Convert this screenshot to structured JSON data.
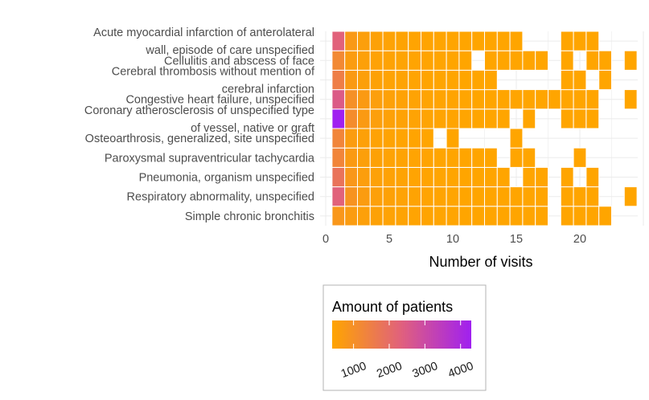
{
  "chart_data": {
    "type": "heatmap",
    "title": "",
    "xlabel": "Number of visits",
    "ylabel": "",
    "xlim": [
      0,
      25
    ],
    "x_ticks": [
      0,
      5,
      10,
      15,
      20
    ],
    "grid": true,
    "rows": [
      {
        "label": [
          "Simple chronic bronchitis"
        ],
        "cells": [
          [
            1,
            800
          ],
          [
            2,
            650
          ],
          [
            3,
            550
          ],
          [
            4,
            500
          ],
          [
            5,
            470
          ],
          [
            6,
            450
          ],
          [
            7,
            430
          ],
          [
            8,
            420
          ],
          [
            9,
            410
          ],
          [
            10,
            410
          ],
          [
            11,
            400
          ],
          [
            12,
            400
          ],
          [
            13,
            400
          ],
          [
            14,
            400
          ],
          [
            15,
            400
          ],
          [
            16,
            400
          ],
          [
            17,
            400
          ],
          [
            19,
            400
          ],
          [
            20,
            400
          ],
          [
            21,
            400
          ],
          [
            22,
            400
          ]
        ]
      },
      {
        "label": [
          "Respiratory abnormality, unspecified"
        ],
        "cells": [
          [
            1,
            2300
          ],
          [
            2,
            900
          ],
          [
            3,
            650
          ],
          [
            4,
            550
          ],
          [
            5,
            500
          ],
          [
            6,
            470
          ],
          [
            7,
            450
          ],
          [
            8,
            430
          ],
          [
            9,
            420
          ],
          [
            10,
            410
          ],
          [
            11,
            400
          ],
          [
            12,
            400
          ],
          [
            13,
            400
          ],
          [
            14,
            400
          ],
          [
            15,
            400
          ],
          [
            16,
            400
          ],
          [
            17,
            400
          ],
          [
            19,
            400
          ],
          [
            20,
            400
          ],
          [
            21,
            400
          ],
          [
            24,
            400
          ]
        ]
      },
      {
        "label": [
          "Pneumonia, organism unspecified"
        ],
        "cells": [
          [
            1,
            1800
          ],
          [
            2,
            800
          ],
          [
            3,
            600
          ],
          [
            4,
            520
          ],
          [
            5,
            480
          ],
          [
            6,
            450
          ],
          [
            7,
            430
          ],
          [
            8,
            420
          ],
          [
            9,
            410
          ],
          [
            10,
            400
          ],
          [
            11,
            400
          ],
          [
            12,
            400
          ],
          [
            13,
            400
          ],
          [
            14,
            400
          ],
          [
            16,
            400
          ],
          [
            17,
            400
          ],
          [
            19,
            400
          ],
          [
            21,
            400
          ]
        ]
      },
      {
        "label": [
          "Paroxysmal supraventricular tachycardia"
        ],
        "cells": [
          [
            1,
            1300
          ],
          [
            2,
            700
          ],
          [
            3,
            560
          ],
          [
            4,
            500
          ],
          [
            5,
            470
          ],
          [
            6,
            450
          ],
          [
            7,
            430
          ],
          [
            8,
            420
          ],
          [
            9,
            410
          ],
          [
            10,
            400
          ],
          [
            11,
            400
          ],
          [
            12,
            400
          ],
          [
            13,
            400
          ],
          [
            15,
            400
          ],
          [
            16,
            400
          ],
          [
            20,
            400
          ]
        ]
      },
      {
        "label": [
          "Osteoarthrosis, generalized, site unspecified"
        ],
        "cells": [
          [
            1,
            1300
          ],
          [
            2,
            650
          ],
          [
            3,
            530
          ],
          [
            4,
            480
          ],
          [
            5,
            450
          ],
          [
            6,
            430
          ],
          [
            7,
            420
          ],
          [
            8,
            400
          ],
          [
            10,
            400
          ],
          [
            15,
            400
          ]
        ]
      },
      {
        "label": [
          "Coronary atherosclerosis of unspecified type",
          "of vessel, native or graft"
        ],
        "cells": [
          [
            1,
            4300
          ],
          [
            2,
            1100
          ],
          [
            3,
            700
          ],
          [
            4,
            580
          ],
          [
            5,
            520
          ],
          [
            6,
            480
          ],
          [
            7,
            460
          ],
          [
            8,
            440
          ],
          [
            9,
            430
          ],
          [
            10,
            420
          ],
          [
            11,
            410
          ],
          [
            12,
            400
          ],
          [
            13,
            400
          ],
          [
            14,
            400
          ],
          [
            16,
            400
          ],
          [
            19,
            400
          ],
          [
            20,
            400
          ],
          [
            21,
            400
          ]
        ]
      },
      {
        "label": [
          "Congestive heart failure, unspecified"
        ],
        "cells": [
          [
            1,
            2500
          ],
          [
            2,
            1000
          ],
          [
            3,
            700
          ],
          [
            4,
            580
          ],
          [
            5,
            520
          ],
          [
            6,
            480
          ],
          [
            7,
            460
          ],
          [
            8,
            440
          ],
          [
            9,
            430
          ],
          [
            10,
            420
          ],
          [
            11,
            410
          ],
          [
            12,
            400
          ],
          [
            13,
            400
          ],
          [
            14,
            400
          ],
          [
            15,
            400
          ],
          [
            16,
            400
          ],
          [
            17,
            400
          ],
          [
            18,
            400
          ],
          [
            19,
            400
          ],
          [
            20,
            400
          ],
          [
            21,
            400
          ],
          [
            24,
            400
          ]
        ]
      },
      {
        "label": [
          "Cerebral thrombosis without mention of",
          "cerebral infarction"
        ],
        "cells": [
          [
            1,
            1500
          ],
          [
            2,
            700
          ],
          [
            3,
            560
          ],
          [
            4,
            500
          ],
          [
            5,
            470
          ],
          [
            6,
            450
          ],
          [
            7,
            430
          ],
          [
            8,
            420
          ],
          [
            9,
            410
          ],
          [
            10,
            400
          ],
          [
            11,
            400
          ],
          [
            12,
            400
          ],
          [
            13,
            400
          ],
          [
            19,
            400
          ],
          [
            20,
            400
          ],
          [
            22,
            400
          ]
        ]
      },
      {
        "label": [
          "Cellulitis and abscess of face"
        ],
        "cells": [
          [
            1,
            1200
          ],
          [
            2,
            650
          ],
          [
            3,
            540
          ],
          [
            4,
            490
          ],
          [
            5,
            460
          ],
          [
            6,
            440
          ],
          [
            7,
            430
          ],
          [
            8,
            420
          ],
          [
            9,
            410
          ],
          [
            10,
            400
          ],
          [
            11,
            400
          ],
          [
            13,
            400
          ],
          [
            14,
            400
          ],
          [
            15,
            400
          ],
          [
            16,
            400
          ],
          [
            17,
            400
          ],
          [
            19,
            400
          ],
          [
            21,
            400
          ],
          [
            22,
            400
          ],
          [
            24,
            400
          ]
        ]
      },
      {
        "label": [
          "Acute myocardial infarction of anterolateral",
          "wall, episode of care unspecified"
        ],
        "cells": [
          [
            1,
            2300
          ],
          [
            2,
            750
          ],
          [
            3,
            580
          ],
          [
            4,
            510
          ],
          [
            5,
            470
          ],
          [
            6,
            450
          ],
          [
            7,
            430
          ],
          [
            8,
            420
          ],
          [
            9,
            410
          ],
          [
            10,
            400
          ],
          [
            11,
            400
          ],
          [
            12,
            400
          ],
          [
            13,
            400
          ],
          [
            14,
            400
          ],
          [
            15,
            400
          ],
          [
            19,
            400
          ],
          [
            20,
            400
          ],
          [
            21,
            400
          ]
        ]
      }
    ],
    "legend": {
      "title": "Amount of patients",
      "ticks": [
        1000,
        2000,
        3000,
        4000
      ],
      "tick_labels": [
        "1000",
        "2000",
        "3000",
        "4000"
      ],
      "min": 400,
      "max": 4300,
      "placement": "bottom",
      "low_color": "#FFA500",
      "mid_color": "#E0607E",
      "high_color": "#A020F0"
    }
  }
}
